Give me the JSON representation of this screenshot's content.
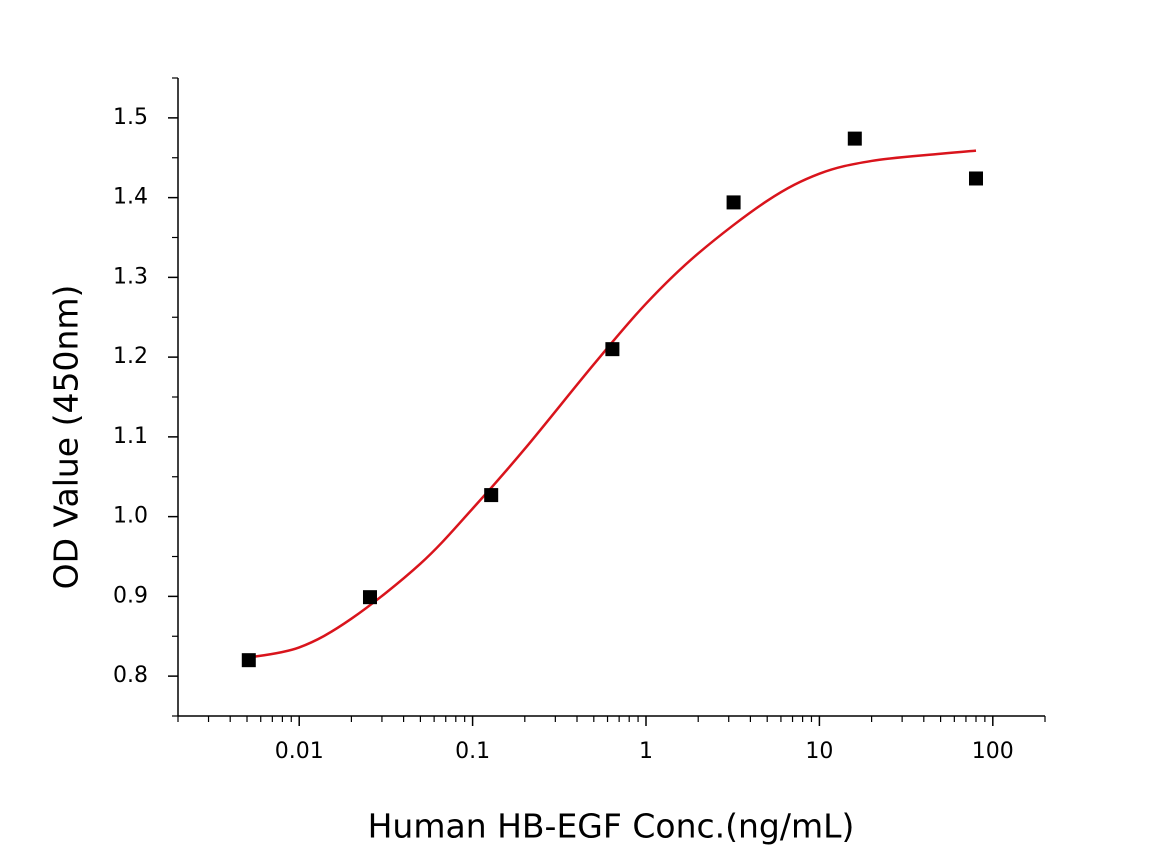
{
  "chart_data": {
    "type": "scatter",
    "x_label": "Human HB-EGF Conc.(ng/mL)",
    "y_label": "OD Value (450nm)",
    "xlog": true,
    "xlim": [
      0.002,
      200
    ],
    "ylim": [
      0.75,
      1.55
    ],
    "xticks": [
      0.01,
      0.1,
      1,
      10,
      100
    ],
    "yticks": [
      0.8,
      0.9,
      {
        "value": 1,
        "label": "1.0"
      },
      1.1,
      1.2,
      1.3,
      1.4,
      1.5
    ],
    "series": [
      {
        "type": "scatter",
        "color": "#000000",
        "x": [
          0.00512,
          0.0256,
          0.128,
          0.64,
          3.2,
          16,
          80
        ],
        "values": [
          0.82,
          0.899,
          1.027,
          1.21,
          1.394,
          1.474,
          1.424
        ]
      },
      {
        "type": "line",
        "color": "#d9141c",
        "x": [
          0.005,
          0.01,
          0.02,
          0.05,
          0.1,
          0.2,
          0.5,
          1,
          2,
          5,
          10,
          20,
          50,
          80
        ],
        "values": [
          0.823,
          0.836,
          0.872,
          0.941,
          1.01,
          1.085,
          1.191,
          1.267,
          1.33,
          1.396,
          1.43,
          1.446,
          1.455,
          1.459
        ]
      }
    ]
  }
}
